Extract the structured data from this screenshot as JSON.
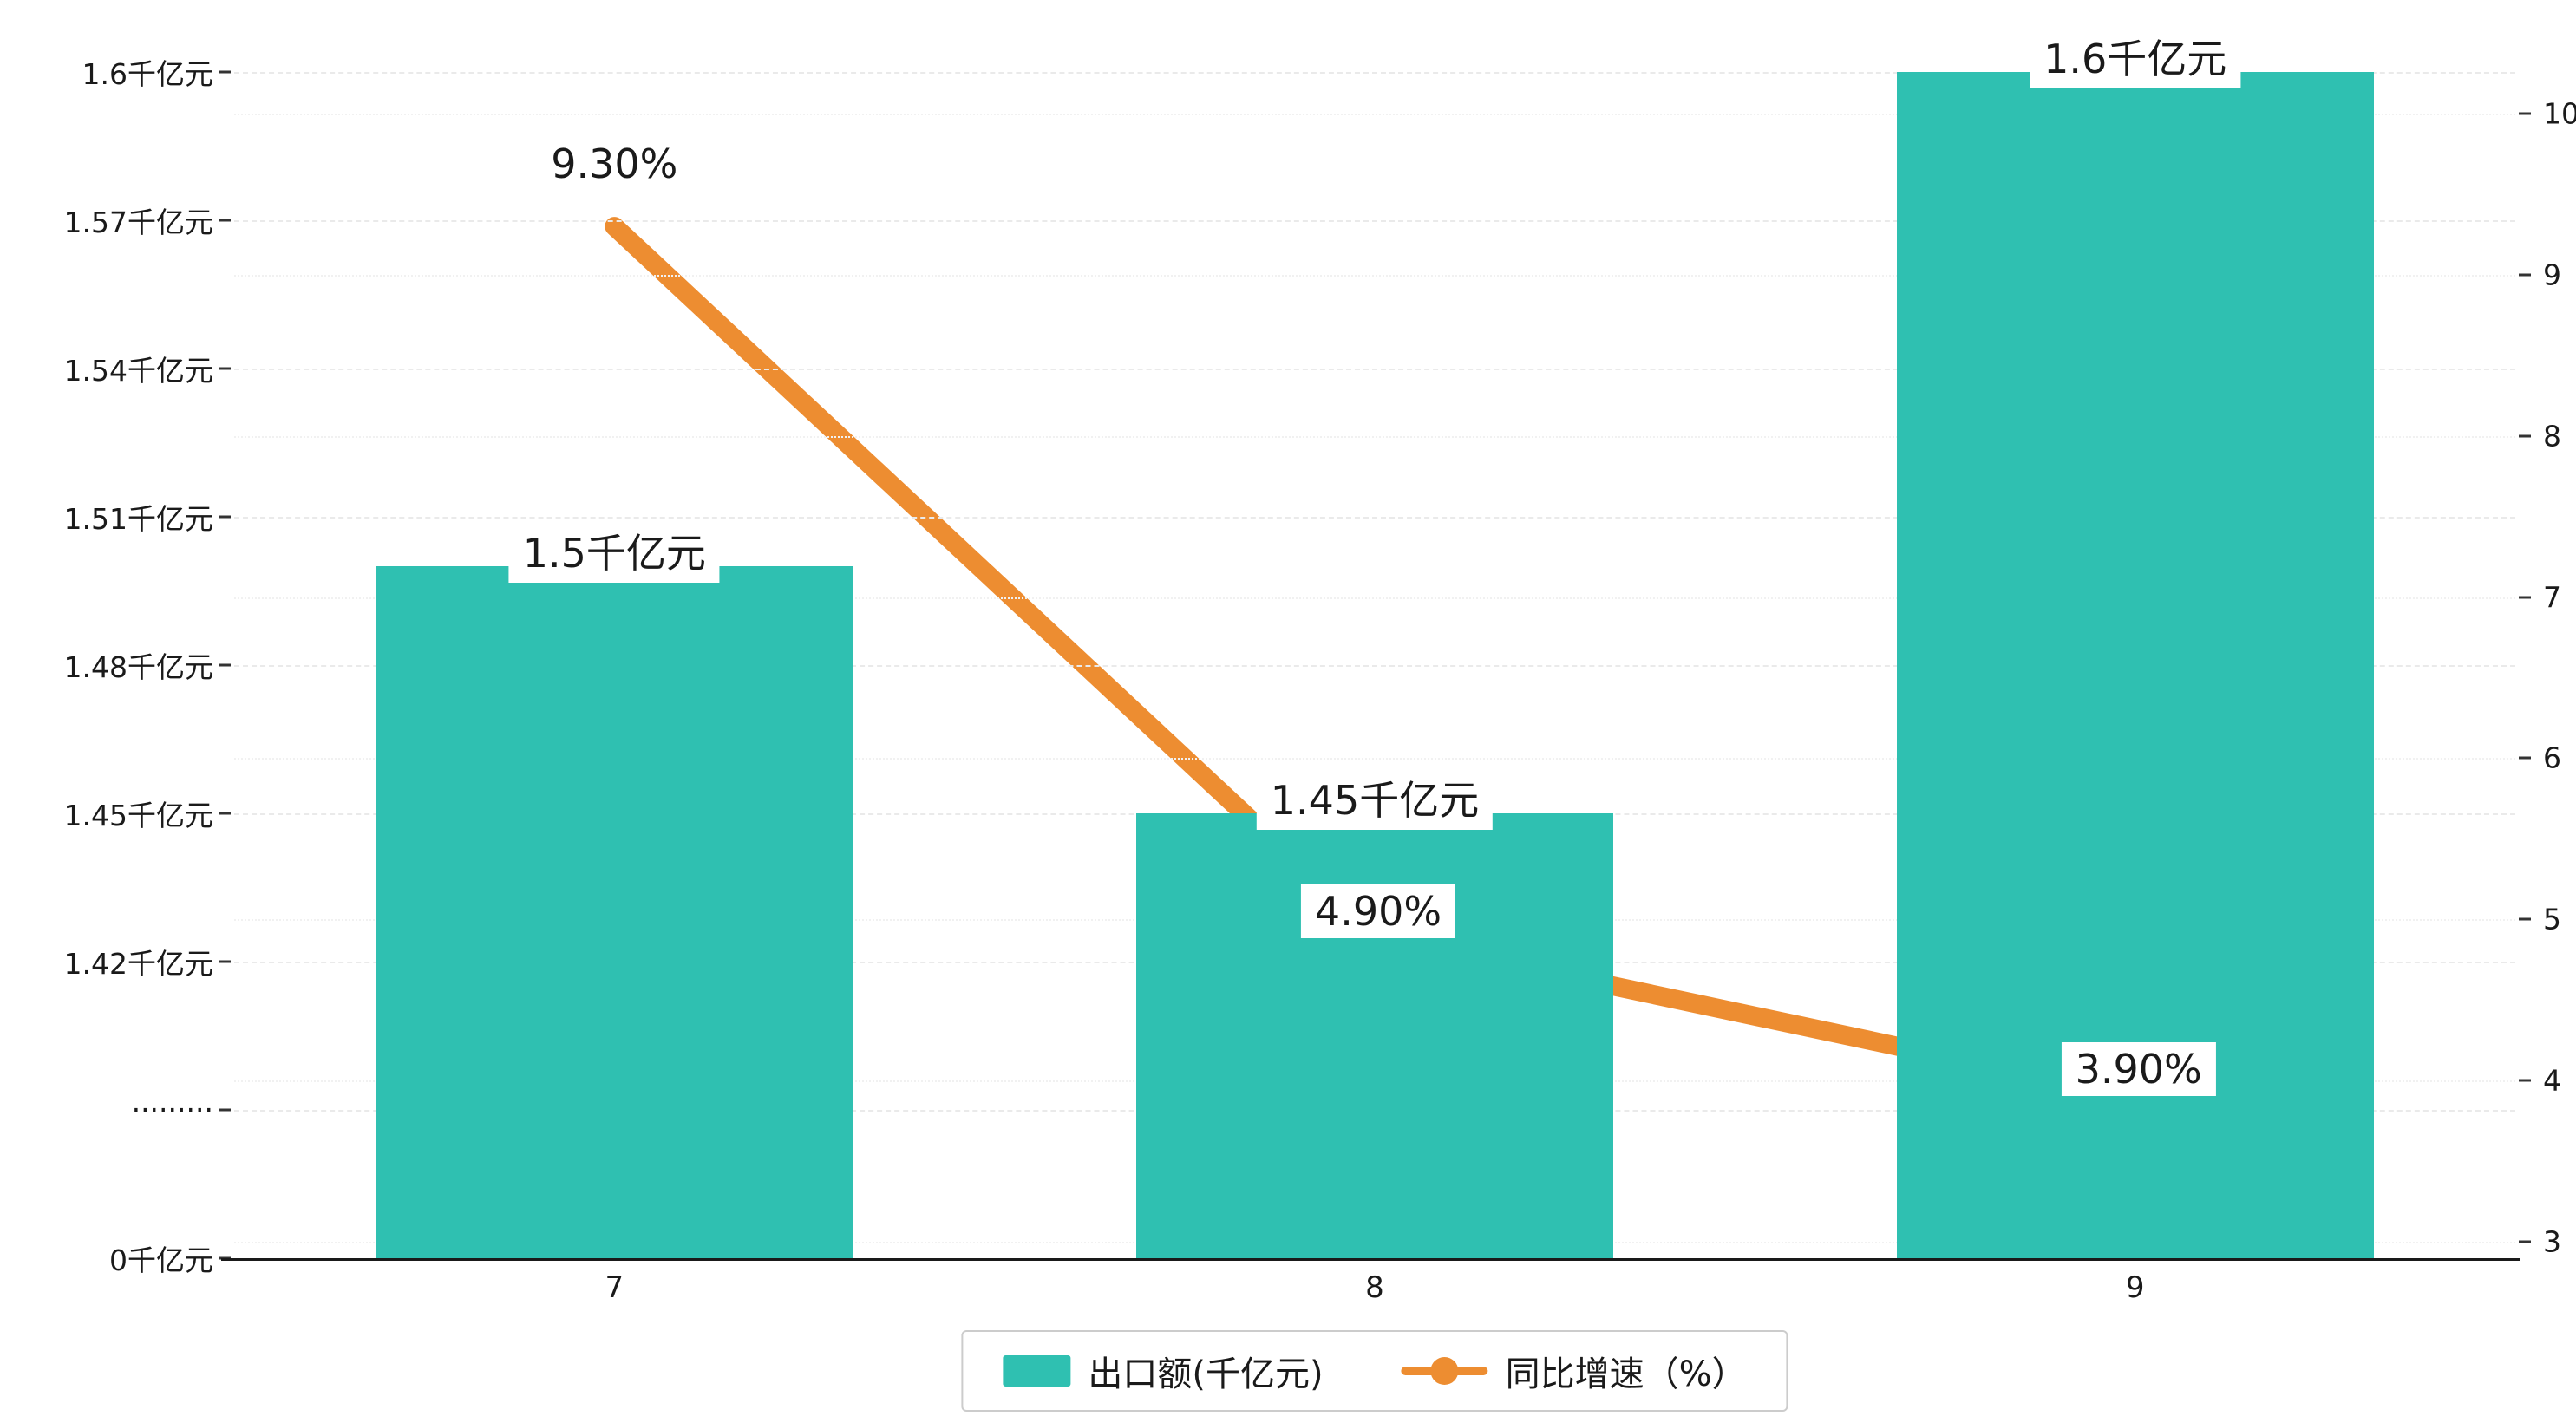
{
  "chart_data": {
    "type": "bar",
    "subtype": "bar+line combo, dual y-axis",
    "categories": [
      "7",
      "8",
      "9"
    ],
    "series": [
      {
        "name": "出口额(千亿元)",
        "type": "bar",
        "axis": "left",
        "color": "#2fc0b1",
        "values": [
          1.5,
          1.45,
          1.6
        ],
        "labels": [
          "1.5千亿元",
          "1.45千亿元",
          "1.6千亿元"
        ]
      },
      {
        "name": "同比增速（%）",
        "type": "line",
        "axis": "right",
        "color": "#ed8d31",
        "values": [
          9.3,
          4.9,
          3.9
        ],
        "labels": [
          "9.30%",
          "4.90%",
          "3.90%"
        ]
      }
    ],
    "title": "",
    "xlabel": "",
    "left_axis": {
      "tick_labels": [
        "0千亿元",
        "·········",
        "1.42千亿元",
        "1.45千亿元",
        "1.48千亿元",
        "1.51千亿元",
        "1.54千亿元",
        "1.57千亿元",
        "1.6千亿元"
      ],
      "broken_axis": true,
      "break_after": "0千亿元",
      "value_start_after_break": 1.42,
      "value_max": 1.6,
      "step": 0.03
    },
    "right_axis": {
      "tick_labels": [
        "3",
        "4",
        "5",
        "6",
        "7",
        "8",
        "9",
        "10"
      ],
      "min": 3,
      "max": 10
    },
    "grid": true,
    "legend_position": "bottom-center",
    "legend": [
      {
        "label": "出口额(千亿元)",
        "marker": "bar-swatch",
        "color": "#2fc0b1"
      },
      {
        "label": "同比增速（%）",
        "marker": "line-dot",
        "color": "#ed8d31"
      }
    ],
    "colors": {
      "bar": "#2fc0b1",
      "line": "#ed8d31",
      "text": "#1a1a1a",
      "grid": "#eaeaea",
      "background": "#ffffff"
    }
  }
}
